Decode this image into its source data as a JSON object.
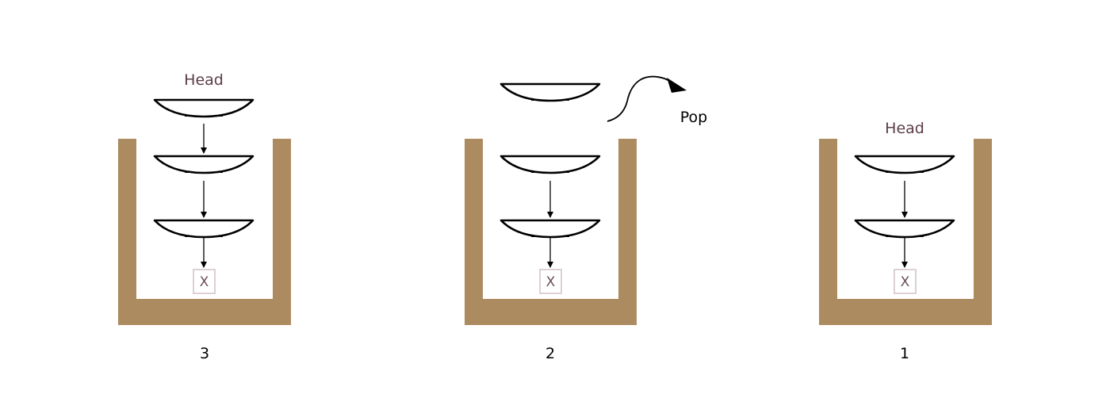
{
  "colors": {
    "container": "#ad8b60",
    "plate_outline": "#000000",
    "null_box_border": "#ddd0d2",
    "label_text": "#5b3d45"
  },
  "panels": [
    {
      "step_label": "3",
      "head_label": "Head",
      "plates_in_stack": 3,
      "null_label": "X"
    },
    {
      "step_label": "2",
      "head_label": "",
      "plates_in_stack": 2,
      "popped_plate": true,
      "action_label": "Pop",
      "null_label": "X"
    },
    {
      "step_label": "1",
      "head_label": "Head",
      "plates_in_stack": 2,
      "null_label": "X"
    }
  ]
}
